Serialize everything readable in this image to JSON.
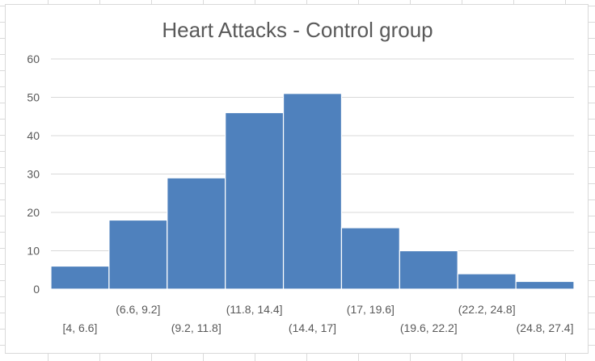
{
  "chart_data": {
    "type": "bar",
    "title": "Heart Attacks - Control group",
    "xlabel": "",
    "ylabel": "",
    "categories": [
      "[4, 6.6]",
      "(6.6, 9.2]",
      "(9.2, 11.8]",
      "(11.8, 14.4]",
      "(14.4, 17]",
      "(17, 19.6]",
      "(19.6, 22.2]",
      "(22.2, 24.8]",
      "(24.8, 27.4]"
    ],
    "values": [
      6,
      18,
      29,
      46,
      51,
      16,
      10,
      4,
      2
    ],
    "ylim": [
      0,
      60
    ],
    "yticks": [
      "0",
      "10",
      "20",
      "30",
      "40",
      "50",
      "60"
    ],
    "grid": true,
    "legend": "none",
    "bar_color": "#4f81bd"
  }
}
